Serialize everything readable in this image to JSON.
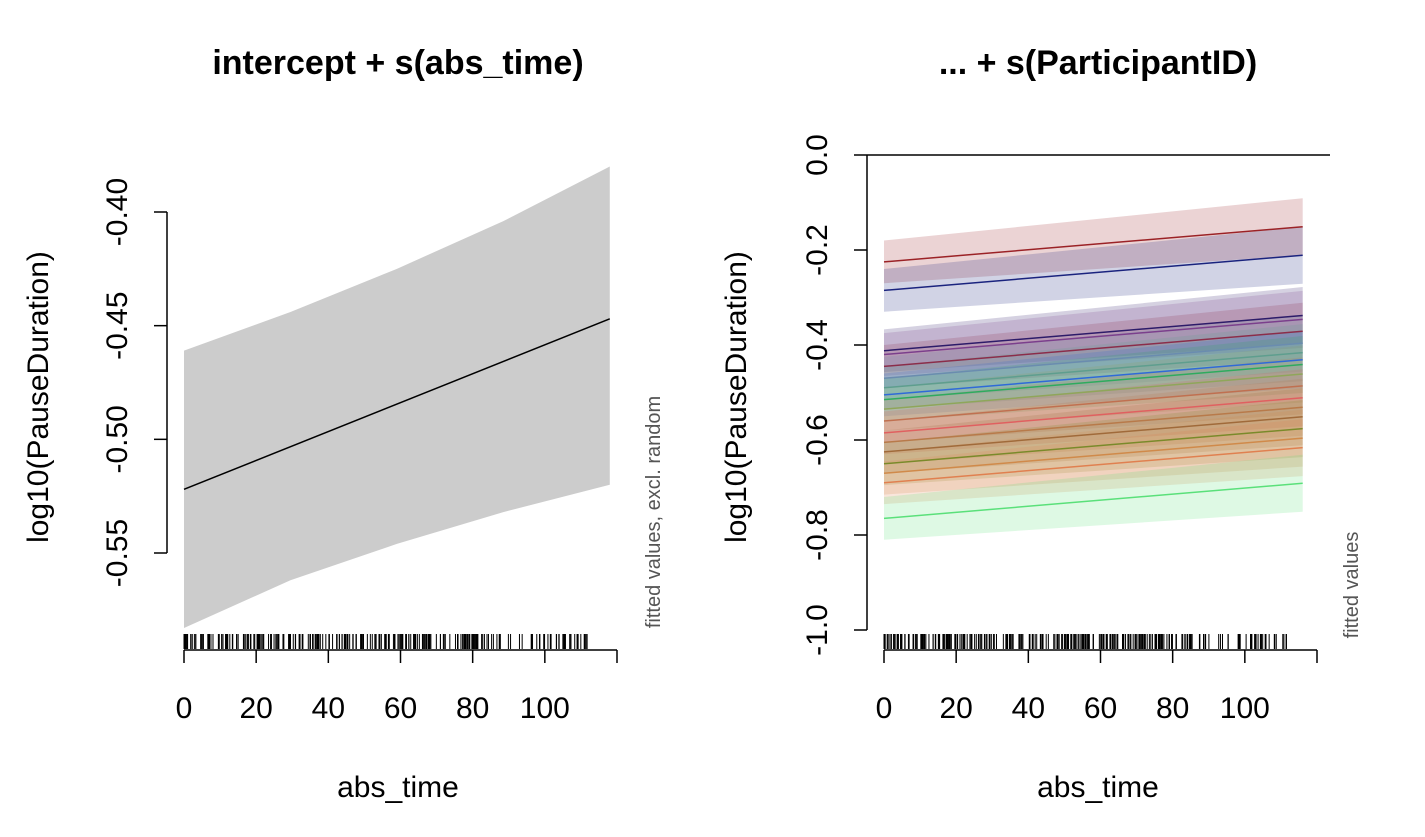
{
  "chart_data": [
    {
      "type": "line",
      "title": "intercept + s(abs_time)",
      "xlabel": "abs_time",
      "ylabel": "log10(PauseDuration)",
      "side_note": "fitted values, excl. random",
      "xlim": [
        0,
        120
      ],
      "ylim": [
        -0.587,
        -0.377
      ],
      "x_ticks": [
        0,
        20,
        40,
        60,
        80,
        100
      ],
      "y_ticks": [
        -0.55,
        -0.5,
        -0.45,
        -0.4
      ],
      "y_tick_labels": [
        "-0.55",
        "-0.50",
        "-0.45",
        "-0.40"
      ],
      "series": [
        {
          "fit": [
            [
              0,
              -0.522
            ],
            [
              120,
              -0.447
            ]
          ],
          "ci_upper": [
            [
              0,
              -0.461
            ],
            [
              30,
              -0.444
            ],
            [
              60,
              -0.425
            ],
            [
              90,
              -0.404
            ],
            [
              120,
              -0.38
            ]
          ],
          "ci_lower": [
            [
              0,
              -0.583
            ],
            [
              30,
              -0.562
            ],
            [
              60,
              -0.546
            ],
            [
              90,
              -0.532
            ],
            [
              120,
              -0.52
            ]
          ],
          "line_color": "#000000",
          "band_color": "#cccccc"
        }
      ],
      "rug": true
    },
    {
      "type": "line",
      "title": "... + s(ParticipantID)",
      "xlabel": "abs_time",
      "ylabel": "log10(PauseDuration)",
      "side_note": "fitted values",
      "xlim": [
        0,
        120
      ],
      "ylim": [
        -1.0,
        0.0
      ],
      "x_ticks": [
        0,
        20,
        40,
        60,
        80,
        100
      ],
      "y_ticks": [
        -1.0,
        -0.8,
        -0.6,
        -0.4,
        -0.2,
        0.0
      ],
      "y_tick_labels": [
        "-1.0",
        "-0.8",
        "-0.6",
        "-0.4",
        "-0.2",
        "0.0"
      ],
      "hline": 0.0,
      "band_halfwidth_start": 0.045,
      "band_halfwidth_end": 0.06,
      "slope": 0.074,
      "series": [
        {
          "start": -0.225,
          "color": "#9b2226"
        },
        {
          "start": -0.285,
          "color": "#1a237e"
        },
        {
          "start": -0.412,
          "color": "#2d1b69"
        },
        {
          "start": -0.42,
          "color": "#7b3f8c"
        },
        {
          "start": -0.445,
          "color": "#8b2d4a"
        },
        {
          "start": -0.47,
          "color": "#6a8caf"
        },
        {
          "start": -0.49,
          "color": "#5e9e8e"
        },
        {
          "start": -0.505,
          "color": "#2f6ad8"
        },
        {
          "start": -0.515,
          "color": "#2eab5e"
        },
        {
          "start": -0.535,
          "color": "#8fa65a"
        },
        {
          "start": -0.56,
          "color": "#c07050"
        },
        {
          "start": -0.585,
          "color": "#e06060"
        },
        {
          "start": -0.605,
          "color": "#b87a4a"
        },
        {
          "start": -0.625,
          "color": "#a06a3a"
        },
        {
          "start": -0.65,
          "color": "#7a8a2a"
        },
        {
          "start": -0.67,
          "color": "#d08a4a"
        },
        {
          "start": -0.69,
          "color": "#e08050"
        },
        {
          "start": -0.765,
          "color": "#5ae07a"
        }
      ],
      "rug": true
    }
  ]
}
